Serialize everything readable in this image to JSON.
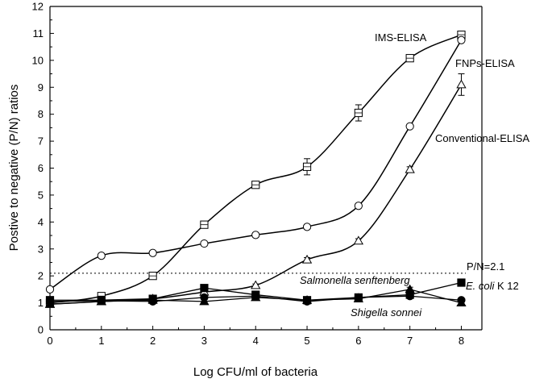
{
  "chart_data": {
    "type": "line",
    "title": "",
    "xlabel": "Log CFU/ml of bacteria",
    "ylabel": "Postive to negative (P/N) ratios",
    "xlim": [
      0,
      8.4
    ],
    "ylim": [
      0,
      12
    ],
    "x_ticks": [
      0,
      1,
      2,
      3,
      4,
      5,
      6,
      7,
      8
    ],
    "y_ticks": [
      0,
      1,
      2,
      3,
      4,
      5,
      6,
      7,
      8,
      9,
      10,
      11,
      12
    ],
    "grid": false,
    "legend": "none",
    "threshold": {
      "value": 2.1,
      "label": "P/N=2.1",
      "style": "dotted"
    },
    "series": [
      {
        "name": "IMS-ELISA",
        "marker": "square-open",
        "x": [
          0,
          1,
          2,
          3,
          4,
          5,
          6,
          7,
          8
        ],
        "y": [
          1.0,
          1.25,
          2.0,
          3.9,
          5.38,
          6.05,
          8.05,
          10.08,
          10.95
        ],
        "err": [
          0,
          0.08,
          0.08,
          0.1,
          0.08,
          0.3,
          0.3,
          0.08,
          0.1
        ]
      },
      {
        "name": "FNPs-ELISA",
        "marker": "circle-open",
        "x": [
          0,
          1,
          2,
          3,
          4,
          5,
          6,
          7,
          8
        ],
        "y": [
          1.5,
          2.75,
          2.85,
          3.2,
          3.52,
          3.82,
          4.6,
          7.55,
          10.75
        ],
        "err": [
          0,
          0.08,
          0.08,
          0.08,
          0.08,
          0.08,
          0.08,
          0.08,
          0.08
        ]
      },
      {
        "name": "Conventional-ELISA",
        "marker": "triangle-open",
        "x": [
          0,
          1,
          2,
          3,
          4,
          5,
          6,
          7,
          8
        ],
        "y": [
          0.95,
          1.05,
          1.15,
          1.4,
          1.65,
          2.6,
          3.3,
          5.95,
          9.1
        ],
        "err": [
          0,
          0.05,
          0.05,
          0.05,
          0.05,
          0.08,
          0.08,
          0.1,
          0.4
        ]
      },
      {
        "name": "Salmonella senftenberg",
        "marker": "triangle-filled",
        "x": [
          0,
          1,
          2,
          3,
          4,
          5,
          6,
          7,
          8
        ],
        "y": [
          0.95,
          1.05,
          1.1,
          1.05,
          1.2,
          1.1,
          1.15,
          1.5,
          1.0
        ],
        "err": [
          0,
          0,
          0,
          0,
          0,
          0,
          0,
          0.08,
          0
        ]
      },
      {
        "name": "E. coli K 12",
        "marker": "square-filled",
        "x": [
          0,
          1,
          2,
          3,
          4,
          5,
          6,
          7,
          8
        ],
        "y": [
          1.1,
          1.1,
          1.15,
          1.55,
          1.3,
          1.1,
          1.2,
          1.3,
          1.75
        ],
        "err": [
          0,
          0,
          0,
          0,
          0,
          0,
          0,
          0,
          0
        ]
      },
      {
        "name": "Shigella sonnei",
        "marker": "circle-filled",
        "x": [
          0,
          1,
          2,
          3,
          4,
          5,
          6,
          7,
          8
        ],
        "y": [
          1.05,
          1.08,
          1.05,
          1.2,
          1.25,
          1.05,
          1.2,
          1.25,
          1.1
        ],
        "err": [
          0,
          0,
          0,
          0,
          0,
          0,
          0,
          0,
          0
        ]
      }
    ],
    "annotations": {
      "ims": "IMS-ELISA",
      "fnps": "FNPs-ELISA",
      "conv": "Conventional-ELISA",
      "salmonella": "Salmonella senftenberg",
      "ecoli_italic": "E. coli",
      "ecoli_rest": " K 12",
      "shigella": "Shigella sonnei"
    }
  }
}
